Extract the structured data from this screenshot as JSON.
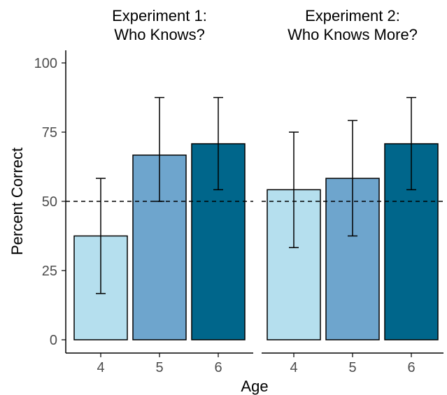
{
  "chart_data": {
    "type": "bar",
    "xlabel": "Age",
    "ylabel": "Percent Correct",
    "ylim": [
      0,
      100
    ],
    "yticks": [
      0,
      25,
      50,
      75,
      100
    ],
    "reference_line": {
      "y": 50,
      "style": "dashed"
    },
    "grid": false,
    "legend": "none",
    "colors": {
      "4": "#b5dfee",
      "5": "#6ea5cd",
      "6": "#00668b"
    },
    "panels": [
      {
        "title": [
          "Experiment 1:",
          "Who Knows?"
        ],
        "categories": [
          "4",
          "5",
          "6"
        ],
        "values": [
          37.5,
          66.7,
          70.8
        ],
        "error_low": [
          16.7,
          50,
          54.2
        ],
        "error_high": [
          58.3,
          87.5,
          87.5
        ]
      },
      {
        "title": [
          "Experiment 2:",
          "Who Knows More?"
        ],
        "categories": [
          "4",
          "5",
          "6"
        ],
        "values": [
          54.2,
          58.3,
          70.8
        ],
        "error_low": [
          33.3,
          37.5,
          54.2
        ],
        "error_high": [
          75,
          79.2,
          87.5
        ]
      }
    ]
  }
}
